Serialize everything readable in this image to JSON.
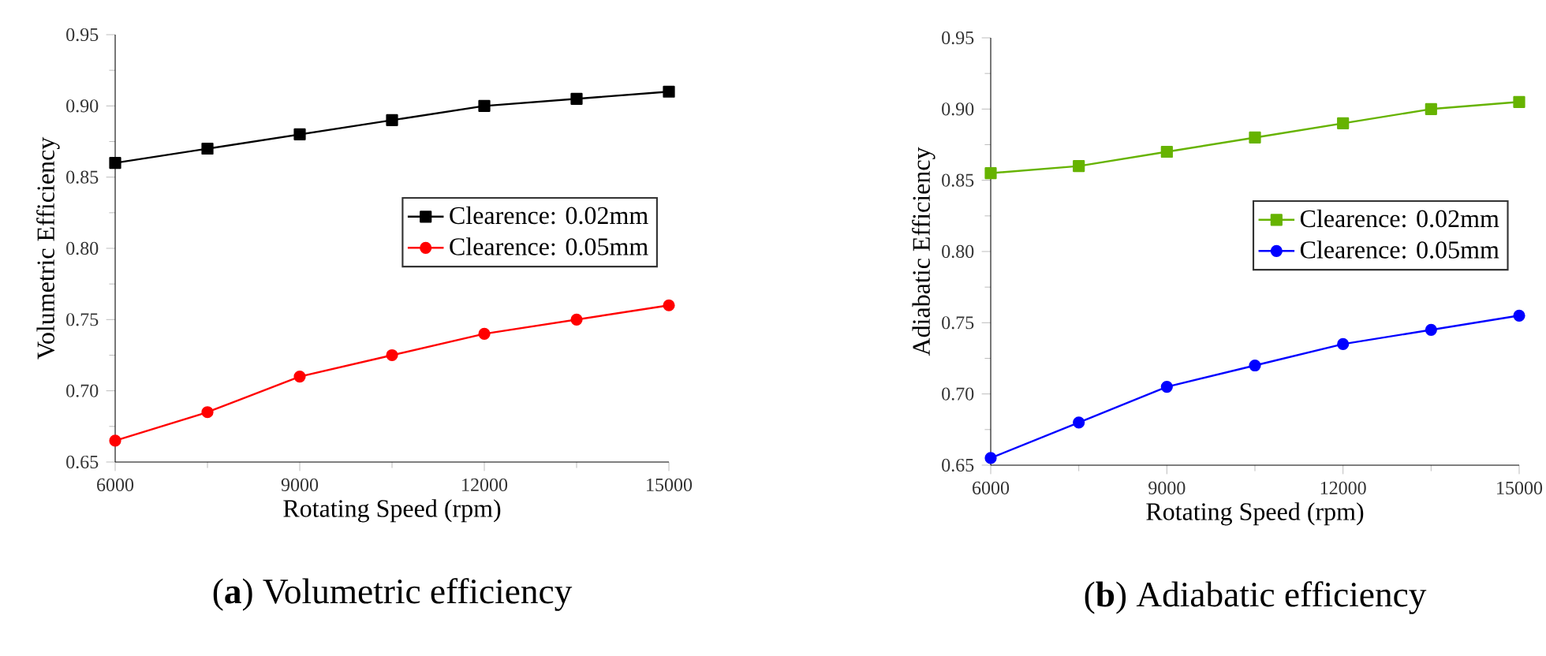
{
  "chart_data": [
    {
      "type": "line",
      "xlabel": "Rotating Speed (rpm)",
      "ylabel": "Volumetric Efficiency",
      "annotations": [
        "(**a**) Volumetric efficiency"
      ],
      "x": [
        6000,
        7500,
        9000,
        10500,
        12000,
        13500,
        15000
      ],
      "series": [
        {
          "name": "Clearence: 0.02mm",
          "color": "#000000",
          "marker": "square",
          "values": [
            0.86,
            0.87,
            0.88,
            0.89,
            0.9,
            0.905,
            0.91
          ]
        },
        {
          "name": "Clearence: 0.05mm",
          "color": "#ff0000",
          "marker": "circle",
          "values": [
            0.665,
            0.685,
            0.71,
            0.725,
            0.74,
            0.75,
            0.76
          ]
        }
      ],
      "xlim": [
        6000,
        15000
      ],
      "xticks": [
        6000,
        9000,
        12000,
        15000
      ],
      "ylim": [
        0.65,
        0.95
      ],
      "yticks": [
        0.65,
        {
          "value": 0.7,
          "label": "0.70"
        },
        0.75,
        {
          "value": 0.8,
          "label": "0.80"
        },
        0.85,
        {
          "value": 0.9,
          "label": "0.90"
        },
        0.95
      ],
      "grid": false,
      "legend": "right",
      "line_style": "solid"
    },
    {
      "type": "line",
      "xlabel": "Rotating Speed (rpm)",
      "ylabel": "Adiabatic Efficiency",
      "annotations": [
        "(**b**) Adiabatic efficiency"
      ],
      "x": [
        6000,
        7500,
        9000,
        10500,
        12000,
        13500,
        15000
      ],
      "series": [
        {
          "name": "Clearence: 0.02mm",
          "color": "#66b300",
          "marker": "square",
          "values": [
            0.855,
            0.86,
            0.87,
            0.88,
            0.89,
            0.9,
            0.905
          ]
        },
        {
          "name": "Clearence: 0.05mm",
          "color": "#0000ff",
          "marker": "circle",
          "values": [
            0.655,
            0.68,
            0.705,
            0.72,
            0.735,
            0.745,
            0.755
          ]
        }
      ],
      "xlim": [
        6000,
        15000
      ],
      "xticks": [
        6000,
        9000,
        12000,
        15000
      ],
      "ylim": [
        0.65,
        0.95
      ],
      "yticks": [
        0.65,
        {
          "value": 0.7,
          "label": "0.70"
        },
        0.75,
        {
          "value": 0.8,
          "label": "0.80"
        },
        0.85,
        {
          "value": 0.9,
          "label": "0.90"
        },
        0.95
      ],
      "grid": false,
      "legend": "right",
      "line_style": "solid"
    }
  ]
}
